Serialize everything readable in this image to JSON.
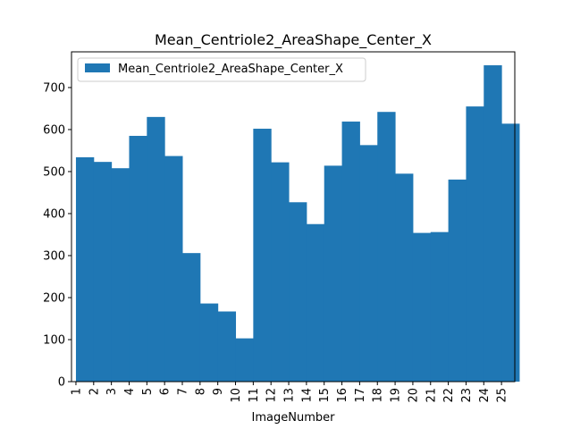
{
  "chart_data": {
    "type": "bar",
    "title": "Mean_Centriole2_AreaShape_Center_X",
    "xlabel": "ImageNumber",
    "ylabel": "",
    "categories": [
      "1",
      "2",
      "3",
      "4",
      "5",
      "6",
      "7",
      "8",
      "9",
      "10",
      "11",
      "12",
      "13",
      "14",
      "15",
      "16",
      "17",
      "18",
      "19",
      "20",
      "21",
      "22",
      "23",
      "24",
      "25"
    ],
    "series": [
      {
        "name": "Mean_Centriole2_AreaShape_Center_X",
        "color": "#1f77b4",
        "values": [
          534,
          523,
          508,
          585,
          630,
          537,
          306,
          186,
          167,
          103,
          602,
          522,
          427,
          375,
          514,
          619,
          563,
          642,
          495,
          354,
          356,
          481,
          655,
          753,
          614
        ]
      }
    ],
    "ylim": [
      0,
      785
    ],
    "yticks": [
      0,
      100,
      200,
      300,
      400,
      500,
      600,
      700
    ],
    "legend": "top-left",
    "grid": false
  }
}
